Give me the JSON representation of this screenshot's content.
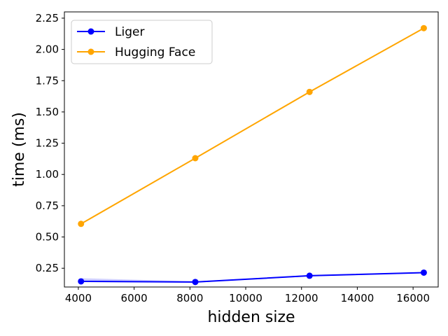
{
  "chart_data": {
    "type": "line",
    "xlabel": "hidden size",
    "ylabel": "time (ms)",
    "xlim": [
      3500,
      16900
    ],
    "ylim": [
      0.1,
      2.3
    ],
    "xticks": [
      4000,
      6000,
      8000,
      10000,
      12000,
      14000,
      16000
    ],
    "xtick_labels": [
      "4000",
      "6000",
      "8000",
      "10000",
      "12000",
      "14000",
      "16000"
    ],
    "yticks": [
      0.25,
      0.5,
      0.75,
      1.0,
      1.25,
      1.5,
      1.75,
      2.0,
      2.25
    ],
    "ytick_labels": [
      "0.25",
      "0.50",
      "0.75",
      "1.00",
      "1.25",
      "1.50",
      "1.75",
      "2.00",
      "2.25"
    ],
    "grid": false,
    "legend_position": "top-left",
    "x": [
      4096,
      8192,
      12288,
      16384
    ],
    "series": [
      {
        "name": "Liger",
        "color": "#0000ff",
        "values": [
          0.145,
          0.14,
          0.19,
          0.215
        ],
        "band_low": [
          0.14,
          0.135,
          0.185,
          0.21
        ],
        "band_high": [
          0.17,
          0.145,
          0.195,
          0.22
        ]
      },
      {
        "name": "Hugging Face",
        "color": "#ffa500",
        "values": [
          0.605,
          1.13,
          1.66,
          2.17
        ],
        "band_low": [
          0.6,
          1.125,
          1.655,
          2.165
        ],
        "band_high": [
          0.61,
          1.135,
          1.665,
          2.175
        ]
      }
    ]
  }
}
